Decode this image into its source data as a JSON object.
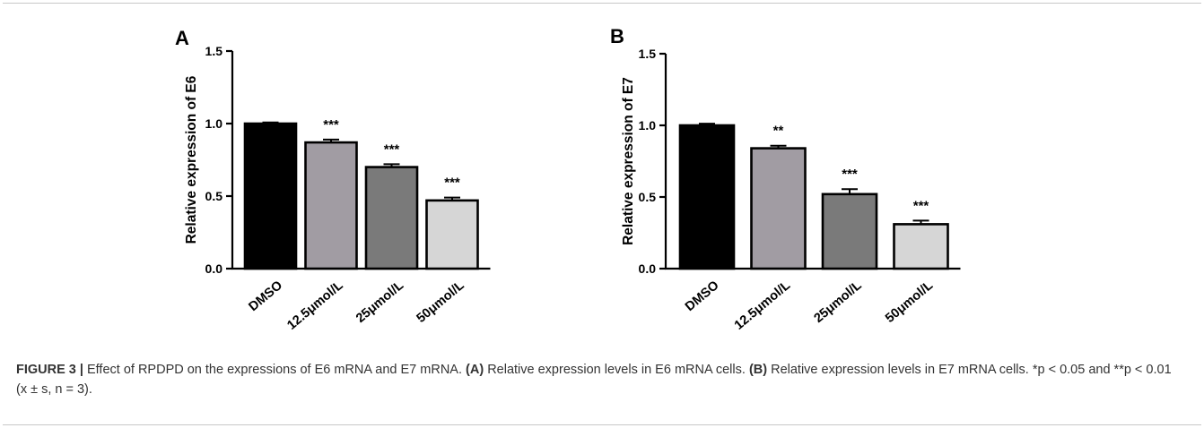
{
  "chart_data": [
    {
      "panel_label": "A",
      "type": "bar",
      "categories": [
        "DMSO",
        "12.5μmol/L",
        "25μmol/L",
        "50μmol/L"
      ],
      "values": [
        1.0,
        0.87,
        0.7,
        0.47
      ],
      "errors": [
        0.008,
        0.02,
        0.02,
        0.02
      ],
      "bar_colors": [
        "#000000",
        "#a19ca3",
        "#7a7a7a",
        "#d6d6d6"
      ],
      "significance": [
        "",
        "***",
        "***",
        "***"
      ],
      "ylabel": "Relative expression of E6",
      "ylim": [
        0,
        1.5
      ],
      "yticks": [
        0.0,
        0.5,
        1.0,
        1.5
      ],
      "ytick_labels": [
        "0.0",
        "0.5",
        "1.0",
        "1.5"
      ]
    },
    {
      "panel_label": "B",
      "type": "bar",
      "categories": [
        "DMSO",
        "12.5μmol/L",
        "25μmol/L",
        "50μmol/L"
      ],
      "values": [
        1.0,
        0.84,
        0.52,
        0.31
      ],
      "errors": [
        0.012,
        0.018,
        0.035,
        0.025
      ],
      "bar_colors": [
        "#000000",
        "#a19ca3",
        "#7a7a7a",
        "#d6d6d6"
      ],
      "significance": [
        "",
        "**",
        "***",
        "***"
      ],
      "ylabel": "Relative expression of E7",
      "ylim": [
        0,
        1.5
      ],
      "yticks": [
        0.0,
        0.5,
        1.0,
        1.5
      ],
      "ytick_labels": [
        "0.0",
        "0.5",
        "1.0",
        "1.5"
      ]
    }
  ],
  "caption": {
    "figure_label": "FIGURE 3 |",
    "text_1": " Effect of RPDPD on the expressions of E6 mRNA and E7 mRNA. ",
    "label_a": "(A)",
    "text_2": " Relative expression levels in E6 mRNA cells. ",
    "label_b": "(B)",
    "text_3": " Relative expression levels in E7 mRNA cells. ",
    "stats": "*p < 0.05 and **p < 0.01 (x ± s, n = 3)."
  }
}
